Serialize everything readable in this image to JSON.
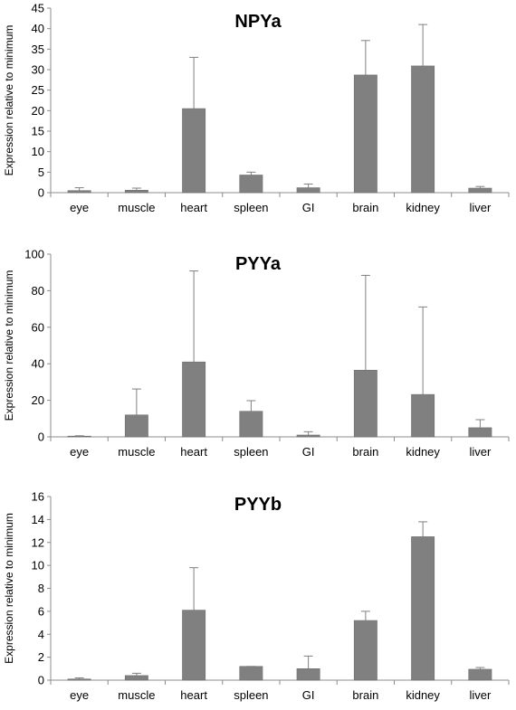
{
  "chart_data": [
    {
      "type": "bar",
      "title": "NPYa",
      "ylabel": "Expression relative to minimum",
      "xlabel": "",
      "categories": [
        "eye",
        "muscle",
        "heart",
        "spleen",
        "GI",
        "brain",
        "kidney",
        "liver"
      ],
      "values": [
        0.5,
        0.6,
        20.5,
        4.3,
        1.2,
        28.7,
        30.9,
        1.1
      ],
      "error_upper": [
        1.2,
        1.1,
        33.0,
        5.0,
        2.1,
        37.1,
        41.0,
        1.5
      ],
      "ylim": [
        0,
        45
      ],
      "yticks": [
        0,
        5,
        10,
        15,
        20,
        25,
        30,
        35,
        40,
        45
      ],
      "grid": false,
      "bar_color": "#808080"
    },
    {
      "type": "bar",
      "title": "PYYa",
      "ylabel": "Expression relative to minimum",
      "xlabel": "",
      "categories": [
        "eye",
        "muscle",
        "heart",
        "spleen",
        "GI",
        "brain",
        "kidney",
        "liver"
      ],
      "values": [
        0.3,
        12.0,
        41.0,
        14.0,
        1.0,
        36.5,
        23.2,
        5.0
      ],
      "error_upper": [
        0.6,
        26.2,
        90.8,
        19.8,
        2.8,
        88.4,
        71.1,
        9.4
      ],
      "ylim": [
        0,
        100
      ],
      "yticks": [
        0,
        20,
        40,
        60,
        80,
        100
      ],
      "grid": false,
      "bar_color": "#808080"
    },
    {
      "type": "bar",
      "title": "PYYb",
      "ylabel": "Expression relative to minimum",
      "xlabel": "",
      "categories": [
        "eye",
        "muscle",
        "heart",
        "spleen",
        "GI",
        "brain",
        "kidney",
        "liver"
      ],
      "values": [
        0.1,
        0.4,
        6.1,
        1.2,
        1.0,
        5.2,
        12.5,
        0.95
      ],
      "error_upper": [
        0.2,
        0.6,
        9.8,
        1.2,
        2.1,
        6.0,
        13.8,
        1.1
      ],
      "ylim": [
        0,
        16
      ],
      "yticks": [
        0,
        2,
        4,
        6,
        8,
        10,
        12,
        14,
        16
      ],
      "grid": false,
      "bar_color": "#808080"
    }
  ]
}
